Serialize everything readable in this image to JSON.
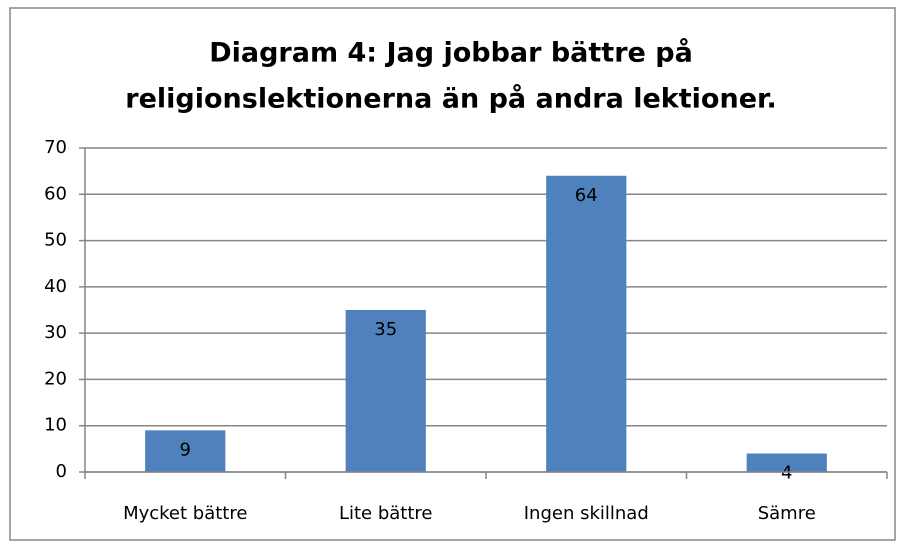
{
  "chart_data": {
    "type": "bar",
    "title": [
      "Diagram 4: Jag jobbar bättre på",
      "religionslektionerna än på andra lektioner."
    ],
    "categories": [
      "Mycket bättre",
      "Lite bättre",
      "Ingen skillnad",
      "Sämre"
    ],
    "values": [
      9,
      35,
      64,
      4
    ],
    "color": "#4f81bd",
    "ylim": [
      0,
      70
    ],
    "yticks": [
      0,
      10,
      20,
      30,
      40,
      50,
      60,
      70
    ],
    "grid": true
  }
}
